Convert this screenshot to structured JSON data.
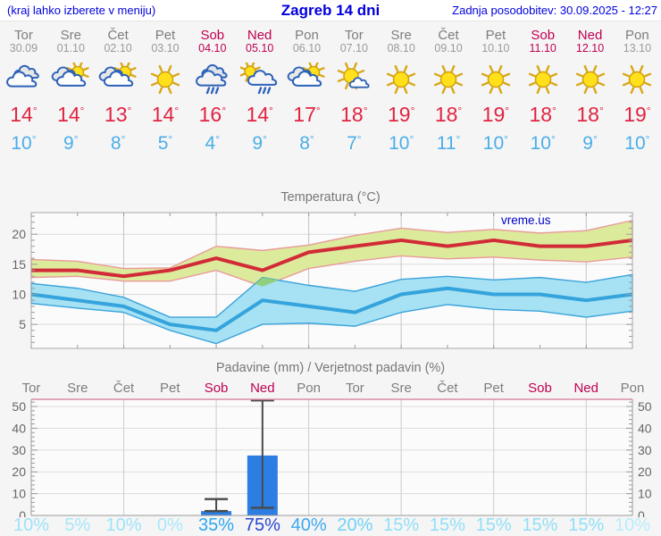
{
  "header": {
    "left": "(kraj lahko izberete v meniju)",
    "title": "Zagreb 14 dni",
    "right": "Zadnja posodobitev: 30.09.2025 - 12:27",
    "text_color": "#0000dd"
  },
  "forecast": {
    "deg": "°",
    "colors": {
      "day": "#7d7d7d",
      "date": "#9a9a9a",
      "weekend": "#c00051",
      "high": "#e02440",
      "low": "#4aaee8"
    },
    "days": [
      {
        "name": "Tor",
        "date": "30.09",
        "weekend": false,
        "icon": "cloudy",
        "high": "14",
        "low": "10"
      },
      {
        "name": "Sre",
        "date": "01.10",
        "weekend": false,
        "icon": "partly-cloudy",
        "high": "14",
        "low": "9"
      },
      {
        "name": "Čet",
        "date": "02.10",
        "weekend": false,
        "icon": "partly-cloudy",
        "high": "13",
        "low": "8"
      },
      {
        "name": "Pet",
        "date": "03.10",
        "weekend": false,
        "icon": "sunny",
        "high": "14",
        "low": "5"
      },
      {
        "name": "Sob",
        "date": "04.10",
        "weekend": true,
        "icon": "rain",
        "high": "16",
        "low": "4"
      },
      {
        "name": "Ned",
        "date": "05.10",
        "weekend": true,
        "icon": "sun-cloud-rain",
        "high": "14",
        "low": "9"
      },
      {
        "name": "Pon",
        "date": "06.10",
        "weekend": false,
        "icon": "partly-cloudy",
        "high": "17",
        "low": "8"
      },
      {
        "name": "Tor",
        "date": "07.10",
        "weekend": false,
        "icon": "mostly-sunny",
        "high": "18",
        "low": "7"
      },
      {
        "name": "Sre",
        "date": "08.10",
        "weekend": false,
        "icon": "sunny",
        "high": "19",
        "low": "10"
      },
      {
        "name": "Čet",
        "date": "09.10",
        "weekend": false,
        "icon": "sunny",
        "high": "18",
        "low": "11"
      },
      {
        "name": "Pet",
        "date": "10.10",
        "weekend": false,
        "icon": "sunny",
        "high": "19",
        "low": "10"
      },
      {
        "name": "Sob",
        "date": "11.10",
        "weekend": true,
        "icon": "sunny",
        "high": "18",
        "low": "10"
      },
      {
        "name": "Ned",
        "date": "12.10",
        "weekend": true,
        "icon": "sunny",
        "high": "18",
        "low": "9"
      },
      {
        "name": "Pon",
        "date": "13.10",
        "weekend": false,
        "icon": "sunny",
        "high": "19",
        "low": "10"
      }
    ]
  },
  "chart_data": [
    {
      "type": "line",
      "title": "Temperatura (°C)",
      "watermark": "vreme.us",
      "watermark_color": "#0000cc",
      "categories": [
        "Tor",
        "Sre",
        "Čet",
        "Pet",
        "Sob",
        "Ned",
        "Pon",
        "Tor",
        "Sre",
        "Čet",
        "Pet",
        "Sob",
        "Ned",
        "Pon"
      ],
      "ylim": [
        1,
        23.6
      ],
      "yticks": [
        5,
        10,
        15,
        20
      ],
      "grid_days": [
        2,
        4,
        6,
        8,
        10,
        12
      ],
      "series": [
        {
          "name": "max-temperature",
          "color": "#d22b38",
          "values": [
            14,
            14,
            13,
            14,
            16,
            14,
            17,
            18,
            19,
            18,
            19,
            18,
            18,
            19
          ]
        },
        {
          "name": "min-temperature",
          "color": "#35a3dc",
          "values": [
            10,
            9,
            8,
            5,
            4,
            9,
            8,
            7,
            10,
            11,
            10,
            10,
            9,
            10
          ]
        }
      ],
      "bands": [
        {
          "name": "max-range",
          "fill": "#dcea9c",
          "edge": "#ea9a9a",
          "upper": [
            15.8,
            15.5,
            14.3,
            14.4,
            18.0,
            17.3,
            18.2,
            19.8,
            21.0,
            20.3,
            20.8,
            20.2,
            20.6,
            22.3
          ],
          "lower": [
            12.8,
            13.0,
            12.2,
            12.2,
            14.0,
            11.3,
            14.3,
            15.5,
            16.4,
            15.9,
            16.2,
            15.7,
            15.4,
            16.2
          ]
        },
        {
          "name": "min-range",
          "fill": "#a6e2f3",
          "edge": "#3aa2da",
          "upper": [
            11.8,
            11.0,
            9.5,
            6.2,
            6.2,
            12.8,
            11.5,
            10.5,
            12.5,
            13.0,
            12.4,
            12.8,
            12.0,
            13.3
          ],
          "lower": [
            8.5,
            7.7,
            7.0,
            4.0,
            1.8,
            5.0,
            5.2,
            4.7,
            7.0,
            8.3,
            7.5,
            7.2,
            6.2,
            7.2
          ]
        }
      ],
      "overlap_region": {
        "fill": "#8fcf7d",
        "points": [
          [
            4.84,
            11.73
          ],
          [
            5,
            12.8
          ],
          [
            5.35,
            12.35
          ],
          [
            5,
            11.3
          ]
        ]
      }
    },
    {
      "type": "bar",
      "title": "Padavine (mm) / Verjetnost padavin (%)",
      "categories": [
        "Tor",
        "Sre",
        "Čet",
        "Pet",
        "Sob",
        "Ned",
        "Pon",
        "Tor",
        "Sre",
        "Čet",
        "Pet",
        "Sob",
        "Ned",
        "Pon"
      ],
      "ylim": [
        0,
        53.3
      ],
      "yticks": [
        0,
        10,
        20,
        30,
        40,
        50
      ],
      "grid_days": [
        2,
        4,
        6,
        8,
        10,
        12
      ],
      "bar_color": "#2d7ee3",
      "whisker_color": "#4a4a4a",
      "top_border_color": "#d98ca4",
      "values": [
        0,
        0,
        0,
        0,
        2,
        27.5,
        0,
        0,
        0,
        0,
        0,
        0,
        0,
        0
      ],
      "whiskers": [
        null,
        null,
        null,
        null,
        {
          "low": 2,
          "high": 7.5
        },
        {
          "low": 3.5,
          "high": 53
        },
        null,
        null,
        null,
        null,
        null,
        null,
        null,
        null
      ],
      "probabilities": [
        {
          "label": "10%",
          "color": "#9ce3f6"
        },
        {
          "label": "5%",
          "color": "#a6e7f8"
        },
        {
          "label": "10%",
          "color": "#9ce3f6"
        },
        {
          "label": "0%",
          "color": "#a9e8f8"
        },
        {
          "label": "35%",
          "color": "#2ea7ee"
        },
        {
          "label": "75%",
          "color": "#2b46cf"
        },
        {
          "label": "40%",
          "color": "#3ba9ef"
        },
        {
          "label": "20%",
          "color": "#6fd2f5"
        },
        {
          "label": "15%",
          "color": "#90dff7"
        },
        {
          "label": "15%",
          "color": "#90dff7"
        },
        {
          "label": "15%",
          "color": "#90dff7"
        },
        {
          "label": "15%",
          "color": "#90dff7"
        },
        {
          "label": "15%",
          "color": "#90dff7"
        },
        {
          "label": "10%",
          "color": "#b7edfa"
        }
      ]
    }
  ]
}
